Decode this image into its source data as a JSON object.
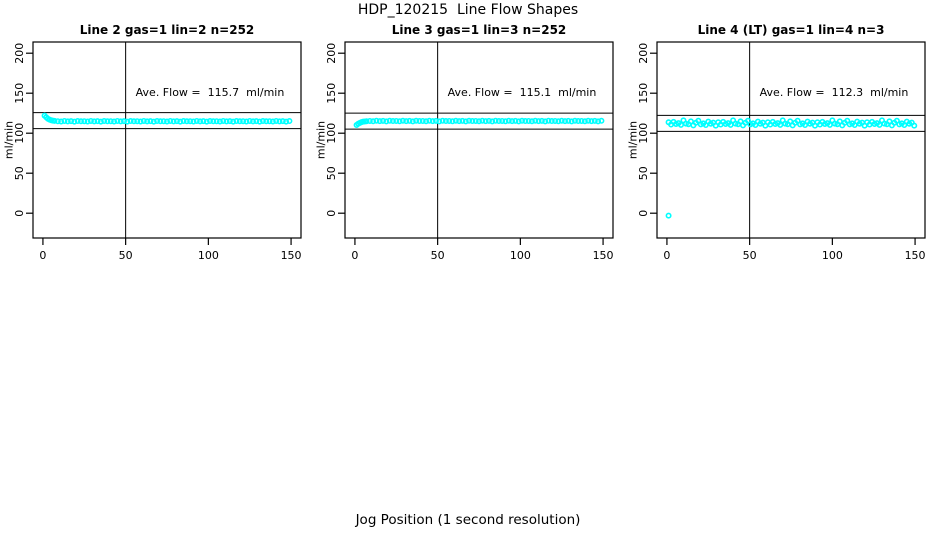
{
  "page": {
    "background": "#ffffff",
    "axis_color": "#000000"
  },
  "main_title": "HDP_120215  Line Flow Shapes",
  "x_axis_label": "Jog Position (1 second resolution)",
  "chart_data": [
    {
      "type": "scatter",
      "title": "Line 2 gas=1 lin=2 n=252",
      "annotation": "Ave. Flow =  115.7  ml/min",
      "ave_flow_ml_min": 115.7,
      "ylabel": "ml/min",
      "xlim": [
        -6,
        156
      ],
      "ylim": [
        -31,
        214
      ],
      "xticks": [
        0,
        50,
        100,
        150
      ],
      "yticks": [
        0,
        50,
        100,
        150,
        200
      ],
      "ref_lines_y": [
        105.7,
        125.7
      ],
      "ref_lines_x": [
        50
      ],
      "marker_color": "#00ffff",
      "marker_shape": "open-circle",
      "points": [
        [
          1,
          122.0
        ],
        [
          2,
          119.9
        ],
        [
          3,
          118.1
        ],
        [
          4,
          117.0
        ],
        [
          5,
          116.2
        ],
        [
          6,
          115.7
        ],
        [
          7,
          115.4
        ],
        [
          9,
          115.0
        ],
        [
          11,
          114.6
        ],
        [
          13,
          115.3
        ],
        [
          15,
          114.8
        ],
        [
          17,
          115.1
        ],
        [
          19,
          114.5
        ],
        [
          21,
          115.2
        ],
        [
          23,
          114.9
        ],
        [
          25,
          115.0
        ],
        [
          27,
          114.6
        ],
        [
          29,
          115.3
        ],
        [
          31,
          114.8
        ],
        [
          33,
          115.1
        ],
        [
          35,
          114.5
        ],
        [
          37,
          115.2
        ],
        [
          39,
          114.9
        ],
        [
          41,
          115.0
        ],
        [
          43,
          114.6
        ],
        [
          45,
          115.3
        ],
        [
          47,
          114.8
        ],
        [
          49,
          115.1
        ],
        [
          51,
          114.5
        ],
        [
          53,
          115.2
        ],
        [
          55,
          114.9
        ],
        [
          57,
          115.0
        ],
        [
          59,
          114.6
        ],
        [
          61,
          115.3
        ],
        [
          63,
          114.8
        ],
        [
          65,
          115.1
        ],
        [
          67,
          114.5
        ],
        [
          69,
          115.2
        ],
        [
          71,
          114.9
        ],
        [
          73,
          115.0
        ],
        [
          75,
          114.6
        ],
        [
          77,
          115.3
        ],
        [
          79,
          114.8
        ],
        [
          81,
          115.1
        ],
        [
          83,
          114.5
        ],
        [
          85,
          115.2
        ],
        [
          87,
          114.9
        ],
        [
          89,
          115.0
        ],
        [
          91,
          114.6
        ],
        [
          93,
          115.3
        ],
        [
          95,
          114.8
        ],
        [
          97,
          115.1
        ],
        [
          99,
          114.5
        ],
        [
          101,
          115.2
        ],
        [
          103,
          114.9
        ],
        [
          105,
          115.0
        ],
        [
          107,
          114.6
        ],
        [
          109,
          115.3
        ],
        [
          111,
          114.8
        ],
        [
          113,
          115.1
        ],
        [
          115,
          114.5
        ],
        [
          117,
          115.2
        ],
        [
          119,
          114.9
        ],
        [
          121,
          115.0
        ],
        [
          123,
          114.6
        ],
        [
          125,
          115.3
        ],
        [
          127,
          114.8
        ],
        [
          129,
          115.1
        ],
        [
          131,
          114.5
        ],
        [
          133,
          115.2
        ],
        [
          135,
          114.9
        ],
        [
          137,
          115.0
        ],
        [
          139,
          114.6
        ],
        [
          141,
          115.3
        ],
        [
          143,
          114.8
        ],
        [
          145,
          115.1
        ],
        [
          147,
          114.5
        ],
        [
          149,
          115.2
        ]
      ]
    },
    {
      "type": "scatter",
      "title": "Line 3 gas=1 lin=3 n=252",
      "annotation": "Ave. Flow =  115.1  ml/min",
      "ave_flow_ml_min": 115.1,
      "ylabel": "ml/min",
      "xlim": [
        -6,
        156
      ],
      "ylim": [
        -31,
        214
      ],
      "xticks": [
        0,
        50,
        100,
        150
      ],
      "yticks": [
        0,
        50,
        100,
        150,
        200
      ],
      "ref_lines_y": [
        105.1,
        125.1
      ],
      "ref_lines_x": [
        50
      ],
      "marker_color": "#00ffff",
      "marker_shape": "open-circle",
      "points": [
        [
          1,
          110.3
        ],
        [
          2,
          111.8
        ],
        [
          3,
          112.9
        ],
        [
          4,
          113.8
        ],
        [
          5,
          114.4
        ],
        [
          6,
          114.7
        ],
        [
          7,
          115.0
        ],
        [
          9,
          115.3
        ],
        [
          11,
          114.9
        ],
        [
          13,
          115.6
        ],
        [
          15,
          115.1
        ],
        [
          17,
          115.4
        ],
        [
          19,
          114.8
        ],
        [
          21,
          115.5
        ],
        [
          23,
          115.2
        ],
        [
          25,
          115.3
        ],
        [
          27,
          114.9
        ],
        [
          29,
          115.6
        ],
        [
          31,
          115.1
        ],
        [
          33,
          115.4
        ],
        [
          35,
          114.8
        ],
        [
          37,
          115.5
        ],
        [
          39,
          115.2
        ],
        [
          41,
          115.3
        ],
        [
          43,
          114.9
        ],
        [
          45,
          115.6
        ],
        [
          47,
          115.1
        ],
        [
          49,
          115.4
        ],
        [
          51,
          114.8
        ],
        [
          53,
          115.5
        ],
        [
          55,
          115.2
        ],
        [
          57,
          115.3
        ],
        [
          59,
          114.9
        ],
        [
          61,
          115.6
        ],
        [
          63,
          115.1
        ],
        [
          65,
          115.4
        ],
        [
          67,
          114.8
        ],
        [
          69,
          115.5
        ],
        [
          71,
          115.2
        ],
        [
          73,
          115.3
        ],
        [
          75,
          114.9
        ],
        [
          77,
          115.6
        ],
        [
          79,
          115.1
        ],
        [
          81,
          115.4
        ],
        [
          83,
          114.8
        ],
        [
          85,
          115.5
        ],
        [
          87,
          115.2
        ],
        [
          89,
          115.3
        ],
        [
          91,
          114.9
        ],
        [
          93,
          115.6
        ],
        [
          95,
          115.1
        ],
        [
          97,
          115.4
        ],
        [
          99,
          114.8
        ],
        [
          101,
          115.5
        ],
        [
          103,
          115.2
        ],
        [
          105,
          115.3
        ],
        [
          107,
          114.9
        ],
        [
          109,
          115.6
        ],
        [
          111,
          115.1
        ],
        [
          113,
          115.4
        ],
        [
          115,
          114.8
        ],
        [
          117,
          115.5
        ],
        [
          119,
          115.2
        ],
        [
          121,
          115.3
        ],
        [
          123,
          114.9
        ],
        [
          125,
          115.6
        ],
        [
          127,
          115.1
        ],
        [
          129,
          115.4
        ],
        [
          131,
          114.8
        ],
        [
          133,
          115.5
        ],
        [
          135,
          115.2
        ],
        [
          137,
          115.3
        ],
        [
          139,
          114.9
        ],
        [
          141,
          115.6
        ],
        [
          143,
          115.1
        ],
        [
          145,
          115.4
        ],
        [
          147,
          114.8
        ],
        [
          149,
          115.5
        ]
      ]
    },
    {
      "type": "scatter",
      "title": "Line 4 (LT) gas=1 lin=4 n=3",
      "annotation": "Ave. Flow =  112.3  ml/min",
      "ave_flow_ml_min": 112.3,
      "ylabel": "ml/min",
      "xlim": [
        -6,
        156
      ],
      "ylim": [
        -31,
        214
      ],
      "xticks": [
        0,
        50,
        100,
        150
      ],
      "yticks": [
        0,
        50,
        100,
        150,
        200
      ],
      "ref_lines_y": [
        102.3,
        122.3
      ],
      "ref_lines_x": [
        50
      ],
      "marker_color": "#00ffff",
      "marker_shape": "open-circle",
      "points": [
        [
          1,
          -3
        ],
        [
          1,
          113.7
        ],
        [
          2.5,
          110.8
        ],
        [
          4,
          114.2
        ],
        [
          5.5,
          111.5
        ],
        [
          7,
          112.6
        ],
        [
          8.5,
          110.4
        ],
        [
          10,
          116.0
        ],
        [
          11.5,
          112.0
        ],
        [
          13,
          111.2
        ],
        [
          14.5,
          114.8
        ],
        [
          16,
          109.8
        ],
        [
          17.5,
          113.0
        ],
        [
          19,
          115.5
        ],
        [
          20.5,
          111.0
        ],
        [
          22,
          112.3
        ],
        [
          23.5,
          110.2
        ],
        [
          25,
          114.5
        ],
        [
          26.5,
          111.8
        ],
        [
          28,
          113.2
        ],
        [
          29.5,
          109.5
        ],
        [
          31,
          113.7
        ],
        [
          32.5,
          110.8
        ],
        [
          34,
          114.2
        ],
        [
          35.5,
          111.5
        ],
        [
          37,
          112.6
        ],
        [
          38.5,
          110.4
        ],
        [
          40,
          116.0
        ],
        [
          41.5,
          112.0
        ],
        [
          43,
          111.2
        ],
        [
          44.5,
          114.8
        ],
        [
          46,
          109.8
        ],
        [
          47.5,
          113.0
        ],
        [
          49,
          115.5
        ],
        [
          50.5,
          111.0
        ],
        [
          52,
          112.3
        ],
        [
          53.5,
          110.2
        ],
        [
          55,
          114.5
        ],
        [
          56.5,
          111.8
        ],
        [
          58,
          113.2
        ],
        [
          59.5,
          109.5
        ],
        [
          61,
          113.7
        ],
        [
          62.5,
          110.8
        ],
        [
          64,
          114.2
        ],
        [
          65.5,
          111.5
        ],
        [
          67,
          112.6
        ],
        [
          68.5,
          110.4
        ],
        [
          70,
          116.0
        ],
        [
          71.5,
          112.0
        ],
        [
          73,
          111.2
        ],
        [
          74.5,
          114.8
        ],
        [
          76,
          109.8
        ],
        [
          77.5,
          113.0
        ],
        [
          79,
          115.5
        ],
        [
          80.5,
          111.0
        ],
        [
          82,
          112.3
        ],
        [
          83.5,
          110.2
        ],
        [
          85,
          114.5
        ],
        [
          86.5,
          111.8
        ],
        [
          88,
          113.2
        ],
        [
          89.5,
          109.5
        ],
        [
          91,
          113.7
        ],
        [
          92.5,
          110.8
        ],
        [
          94,
          114.2
        ],
        [
          95.5,
          111.5
        ],
        [
          97,
          112.6
        ],
        [
          98.5,
          110.4
        ],
        [
          100,
          116.0
        ],
        [
          101.5,
          112.0
        ],
        [
          103,
          111.2
        ],
        [
          104.5,
          114.8
        ],
        [
          106,
          109.8
        ],
        [
          107.5,
          113.0
        ],
        [
          109,
          115.5
        ],
        [
          110.5,
          111.0
        ],
        [
          112,
          112.3
        ],
        [
          113.5,
          110.2
        ],
        [
          115,
          114.5
        ],
        [
          116.5,
          111.8
        ],
        [
          118,
          113.2
        ],
        [
          119.5,
          109.5
        ],
        [
          121,
          113.7
        ],
        [
          122.5,
          110.8
        ],
        [
          124,
          114.2
        ],
        [
          125.5,
          111.5
        ],
        [
          127,
          112.6
        ],
        [
          128.5,
          110.4
        ],
        [
          130,
          116.0
        ],
        [
          131.5,
          112.0
        ],
        [
          133,
          111.2
        ],
        [
          134.5,
          114.8
        ],
        [
          136,
          109.8
        ],
        [
          137.5,
          113.0
        ],
        [
          139,
          115.5
        ],
        [
          140.5,
          111.0
        ],
        [
          142,
          112.3
        ],
        [
          143.5,
          110.2
        ],
        [
          145,
          114.5
        ],
        [
          146.5,
          111.8
        ],
        [
          148,
          113.2
        ],
        [
          149.5,
          109.5
        ]
      ]
    }
  ]
}
